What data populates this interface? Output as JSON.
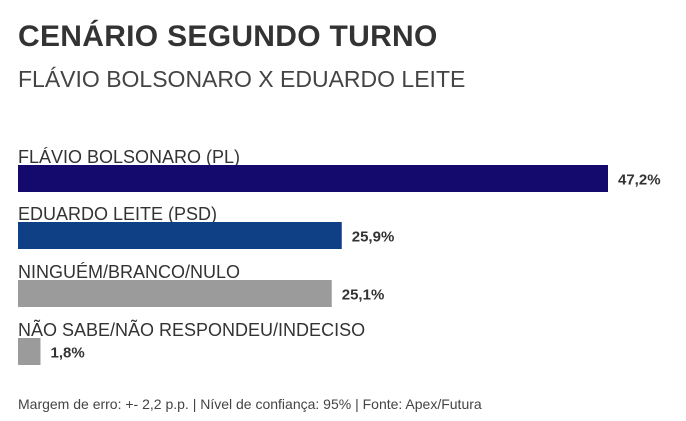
{
  "header": {
    "title": "CENÁRIO SEGUNDO TURNO",
    "subtitle": "FLÁVIO BOLSONARO X EDUARDO LEITE"
  },
  "chart_data": {
    "type": "bar",
    "orientation": "horizontal",
    "categories": [
      "FLÁVIO BOLSONARO (PL)",
      "EDUARDO LEITE (PSD)",
      "NINGUÉM/BRANCO/NULO",
      "NÃO SABE/NÃO RESPONDEU/INDECISO"
    ],
    "values": [
      47.2,
      25.9,
      25.1,
      1.8
    ],
    "value_labels": [
      "47,2%",
      "25,9%",
      "25,1%",
      "1,8%"
    ],
    "colors": [
      "#140a6e",
      "#0f3f85",
      "#9b9b9b",
      "#9b9b9b"
    ],
    "unit": "%",
    "xlim": [
      0,
      47.2
    ],
    "grid": false,
    "legend": "none"
  },
  "footer": {
    "note": "Margem de erro: +- 2,2 p.p. | Nível de confiança: 95% | Fonte: Apex/Futura"
  }
}
